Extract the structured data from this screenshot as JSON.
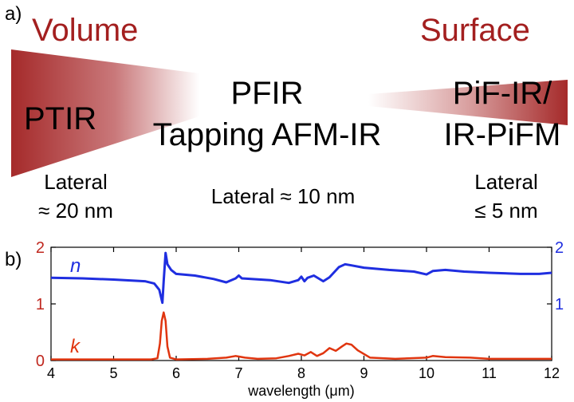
{
  "panel_a": {
    "label": "a)",
    "left_title": "Volume",
    "right_title": "Surface",
    "techniques": {
      "left": "PTIR",
      "middle_line1": "PFIR",
      "middle_line2": "Tapping AFM-IR",
      "right_line1": "PiF-IR/",
      "right_line2": "IR-PiFM"
    },
    "resolution": {
      "left_line1": "Lateral",
      "left_line2": "≈ 20 nm",
      "middle": "Lateral ≈ 10 nm",
      "right_line1": "Lateral",
      "right_line2": "≤ 5 nm"
    },
    "colors": {
      "title_red": "#a31f1f",
      "wedge_start": "#a52a2a",
      "wedge_end": "#ffffff"
    }
  },
  "panel_b": {
    "label": "b)",
    "chart_data": {
      "type": "line",
      "xlabel": "wavelength (μm)",
      "xlim": [
        4,
        12
      ],
      "ylim": [
        0,
        2
      ],
      "x_ticks": [
        4,
        5,
        6,
        7,
        8,
        9,
        10,
        11,
        12
      ],
      "y_ticks_left": [
        0,
        1,
        2
      ],
      "y_ticks_right": [
        1,
        2
      ],
      "series": [
        {
          "name": "n",
          "color": "#1f2ee0",
          "x": [
            4.0,
            4.5,
            5.0,
            5.5,
            5.65,
            5.73,
            5.78,
            5.8,
            5.83,
            5.86,
            5.92,
            6.0,
            6.3,
            6.6,
            6.8,
            6.95,
            7.0,
            7.05,
            7.2,
            7.5,
            7.8,
            7.95,
            8.0,
            8.05,
            8.1,
            8.2,
            8.35,
            8.45,
            8.6,
            8.7,
            8.8,
            9.0,
            9.4,
            9.8,
            10.0,
            10.1,
            10.3,
            10.6,
            11.0,
            11.5,
            11.8,
            12.0
          ],
          "y": [
            1.46,
            1.45,
            1.43,
            1.4,
            1.36,
            1.25,
            1.02,
            1.4,
            1.9,
            1.7,
            1.6,
            1.53,
            1.5,
            1.44,
            1.38,
            1.45,
            1.5,
            1.45,
            1.44,
            1.42,
            1.37,
            1.42,
            1.48,
            1.4,
            1.46,
            1.5,
            1.4,
            1.47,
            1.65,
            1.7,
            1.68,
            1.64,
            1.6,
            1.57,
            1.52,
            1.58,
            1.6,
            1.57,
            1.55,
            1.53,
            1.53,
            1.55
          ]
        },
        {
          "name": "k",
          "color": "#e0350f",
          "x": [
            4.0,
            5.0,
            5.6,
            5.7,
            5.74,
            5.77,
            5.8,
            5.83,
            5.86,
            5.9,
            6.0,
            6.5,
            6.8,
            6.95,
            7.0,
            7.1,
            7.3,
            7.6,
            7.8,
            7.95,
            8.05,
            8.15,
            8.25,
            8.35,
            8.45,
            8.55,
            8.65,
            8.72,
            8.8,
            8.9,
            9.1,
            9.5,
            10.0,
            10.1,
            10.3,
            10.7,
            11.0,
            11.5,
            12.0
          ],
          "y": [
            0.02,
            0.02,
            0.02,
            0.04,
            0.3,
            0.7,
            0.85,
            0.7,
            0.25,
            0.05,
            0.02,
            0.03,
            0.05,
            0.08,
            0.07,
            0.05,
            0.03,
            0.04,
            0.08,
            0.12,
            0.09,
            0.15,
            0.08,
            0.13,
            0.22,
            0.17,
            0.25,
            0.3,
            0.28,
            0.18,
            0.05,
            0.03,
            0.05,
            0.08,
            0.06,
            0.05,
            0.03,
            0.03,
            0.03
          ]
        }
      ]
    }
  }
}
